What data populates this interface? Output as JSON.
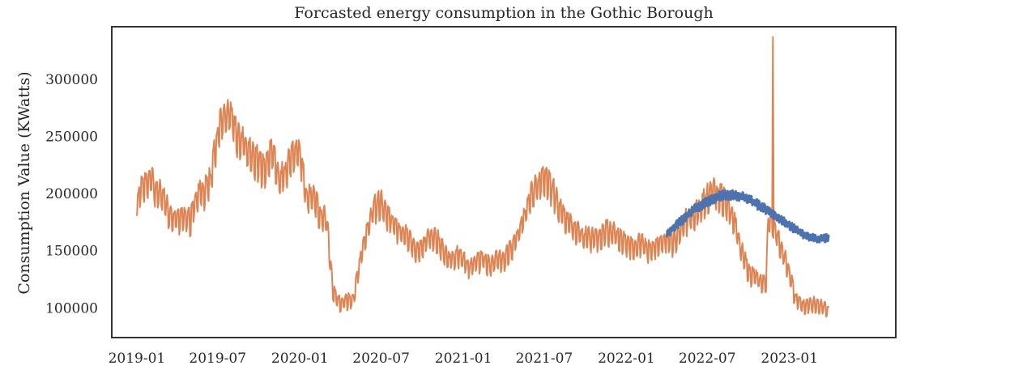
{
  "chart_data": {
    "type": "line",
    "title": "Forcasted energy consumption in the Gothic Borough",
    "xlabel": "",
    "ylabel": "Consumption Value (KWatts)",
    "x_tick_labels": [
      "2019-01",
      "2019-07",
      "2020-01",
      "2020-07",
      "2021-01",
      "2021-07",
      "2022-01",
      "2022-07",
      "2023-01"
    ],
    "y_tick_labels": [
      "100000",
      "150000",
      "200000",
      "250000",
      "300000"
    ],
    "y_ticks": [
      100000,
      150000,
      200000,
      250000,
      300000
    ],
    "xlim": [
      "2018-11-06",
      "2023-08-27"
    ],
    "ylim": [
      74000,
      346000
    ],
    "grid": false,
    "colors": {
      "actual": "#dd8452",
      "forecast": "#4c72b0",
      "frame": "#333333",
      "text": "#262626"
    },
    "series": [
      {
        "key": "forecast",
        "x": [
          "2022-04-01",
          "2022-05-01",
          "2022-06-01",
          "2022-07-01",
          "2022-08-01",
          "2022-09-01",
          "2022-10-01",
          "2022-11-01",
          "2022-12-01",
          "2023-01-01",
          "2023-02-01",
          "2023-03-01",
          "2023-03-31"
        ],
        "values": [
          165000,
          175000,
          186000,
          193000,
          198000,
          199000,
          195000,
          188000,
          180000,
          172000,
          164000,
          160000,
          161000
        ]
      },
      {
        "key": "actual",
        "x": [
          "2018-12-31",
          "2019-01-15",
          "2019-02-01",
          "2019-02-15",
          "2019-03-01",
          "2019-03-15",
          "2019-04-01",
          "2019-04-15",
          "2019-05-01",
          "2019-05-15",
          "2019-06-01",
          "2019-06-15",
          "2019-07-01",
          "2019-07-15",
          "2019-08-01",
          "2019-08-15",
          "2019-09-01",
          "2019-09-15",
          "2019-10-01",
          "2019-10-15",
          "2019-11-01",
          "2019-11-15",
          "2019-12-01",
          "2019-12-15",
          "2020-01-01",
          "2020-01-15",
          "2020-02-01",
          "2020-02-15",
          "2020-03-01",
          "2020-03-15",
          "2020-04-01",
          "2020-04-15",
          "2020-05-01",
          "2020-05-15",
          "2020-06-01",
          "2020-06-15",
          "2020-07-01",
          "2020-07-15",
          "2020-08-01",
          "2020-08-15",
          "2020-09-01",
          "2020-09-15",
          "2020-10-01",
          "2020-10-15",
          "2020-11-01",
          "2020-11-15",
          "2020-12-01",
          "2020-12-15",
          "2021-01-01",
          "2021-01-15",
          "2021-02-01",
          "2021-02-15",
          "2021-03-01",
          "2021-03-15",
          "2021-04-01",
          "2021-04-15",
          "2021-05-01",
          "2021-05-15",
          "2021-06-01",
          "2021-06-15",
          "2021-07-01",
          "2021-07-15",
          "2021-08-01",
          "2021-08-15",
          "2021-09-01",
          "2021-09-15",
          "2021-10-01",
          "2021-10-15",
          "2021-11-01",
          "2021-11-15",
          "2021-12-01",
          "2021-12-15",
          "2022-01-01",
          "2022-01-15",
          "2022-02-01",
          "2022-02-15",
          "2022-03-01",
          "2022-03-15",
          "2022-04-01",
          "2022-04-15",
          "2022-05-01",
          "2022-05-15",
          "2022-06-01",
          "2022-06-15",
          "2022-07-01",
          "2022-07-15",
          "2022-08-01",
          "2022-08-15",
          "2022-09-01",
          "2022-09-15",
          "2022-10-01",
          "2022-10-15",
          "2022-11-01",
          "2022-11-10",
          "2022-11-15",
          "2022-12-01",
          "2022-12-15",
          "2023-01-01",
          "2023-01-15",
          "2023-02-01",
          "2023-02-15",
          "2023-03-01",
          "2023-03-15",
          "2023-03-31"
        ],
        "values": [
          190000,
          205000,
          210000,
          200000,
          195000,
          180000,
          175000,
          180000,
          175000,
          195000,
          200000,
          210000,
          250000,
          265000,
          265000,
          245000,
          240000,
          230000,
          225000,
          215000,
          240000,
          210000,
          215000,
          235000,
          235000,
          195000,
          195000,
          180000,
          175000,
          115000,
          102000,
          105000,
          108000,
          140000,
          170000,
          185000,
          190000,
          180000,
          170000,
          165000,
          160000,
          150000,
          150000,
          160000,
          160000,
          150000,
          140000,
          145000,
          140000,
          135000,
          140000,
          140000,
          135000,
          140000,
          140000,
          150000,
          160000,
          175000,
          195000,
          205000,
          210000,
          205000,
          190000,
          175000,
          170000,
          165000,
          160000,
          160000,
          160000,
          165000,
          165000,
          160000,
          155000,
          150000,
          155000,
          150000,
          150000,
          155000,
          160000,
          155000,
          165000,
          175000,
          180000,
          185000,
          195000,
          200000,
          195000,
          190000,
          170000,
          150000,
          130000,
          125000,
          120000,
          122000,
          180000,
          165000,
          150000,
          130000,
          105000,
          100000,
          102000,
          103000,
          100000,
          97000
        ],
        "annotations_peaks": [
          {
            "x": "2022-11-25",
            "value": 337000
          }
        ]
      }
    ]
  }
}
